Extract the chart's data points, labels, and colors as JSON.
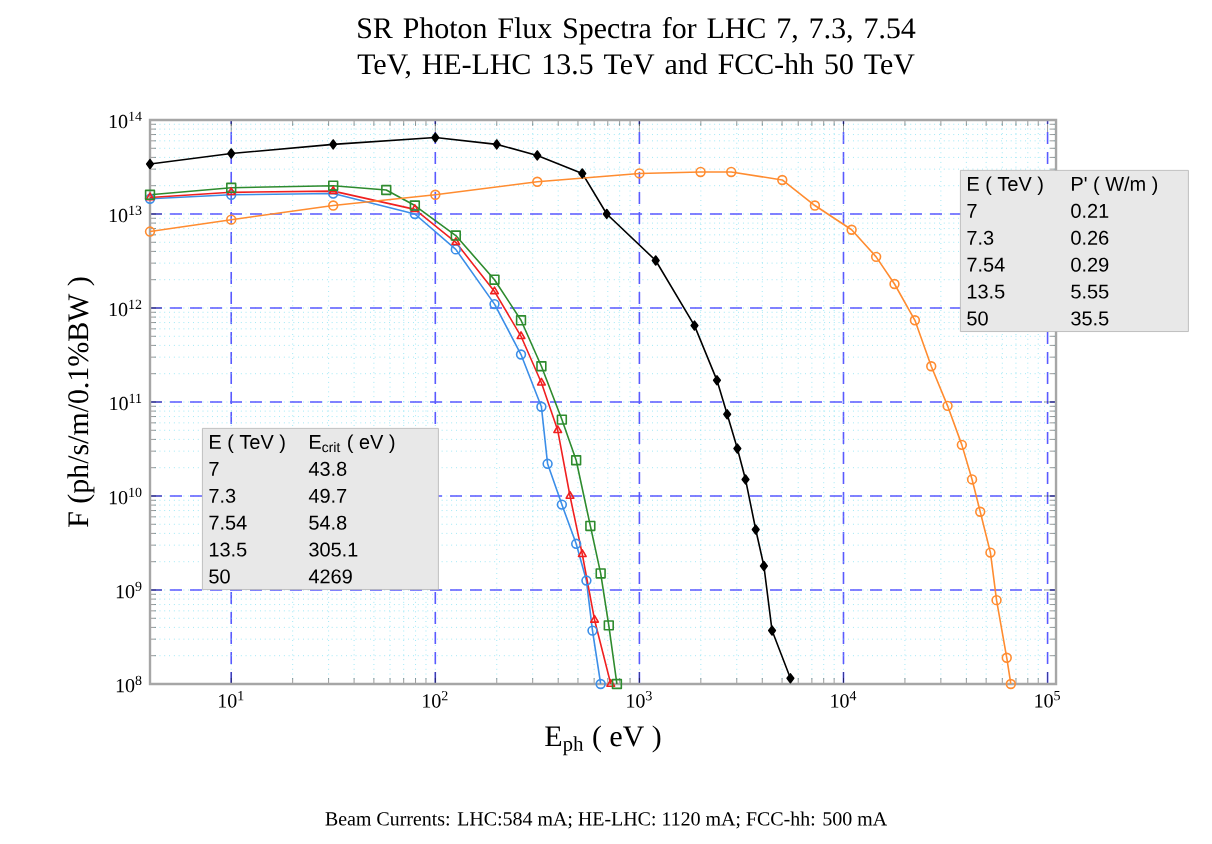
{
  "chart_data": {
    "type": "line",
    "title": "SR Photon Flux Spectra for LHC 7, 7.3, 7.54 TeV, HE-LHC 13.5 TeV and FCC-hh 50 TeV",
    "xlabel": "E$_{ph}$ ( eV )",
    "ylabel": "F (ph/s/m/0.1%BW )",
    "log": "xy",
    "grid": true,
    "line_style": "solid",
    "xlim": [
      4,
      110000
    ],
    "ylim": [
      100000000.0,
      100000000000000.0
    ],
    "xticks": [
      {
        "value": 10,
        "label": "10$^{1}$"
      },
      {
        "value": 100,
        "label": "10$^{2}$"
      },
      {
        "value": 1000,
        "label": "10$^{3}$"
      },
      {
        "value": 10000,
        "label": "10$^{4}$"
      },
      {
        "value": 100000,
        "label": "10$^{5}$"
      }
    ],
    "yticks": [
      {
        "value": 100000000.0,
        "label": "10$^{8}$"
      },
      {
        "value": 1000000000.0,
        "label": "10$^{9}$"
      },
      {
        "value": 10000000000.0,
        "label": "10$^{10}$"
      },
      {
        "value": 100000000000.0,
        "label": "10$^{11}$"
      },
      {
        "value": 1000000000000.0,
        "label": "10$^{12}$"
      },
      {
        "value": 10000000000000.0,
        "label": "10$^{13}$"
      },
      {
        "value": 100000000000000.0,
        "label": "10$^{14}$"
      }
    ],
    "series": [
      {
        "color": "#3b8ee8",
        "marker": "circle",
        "x": [
          4,
          10,
          31.6,
          79.4,
          126,
          195,
          263,
          331,
          355,
          417,
          490,
          550,
          589,
          646
        ],
        "values": [
          14500000000000.0,
          16000000000000.0,
          16500000000000.0,
          10000000000000.0,
          4200000000000.0,
          1100000000000.0,
          320000000000.0,
          89000000000.0,
          22000000000.0,
          8100000000.0,
          3100000000.0,
          1260000000.0,
          370000000.0,
          100000000.0
        ]
      },
      {
        "color": "#f02020",
        "marker": "triangle",
        "x": [
          4,
          10,
          31.6,
          79.4,
          126,
          195,
          263,
          331,
          398,
          457,
          525,
          603,
          724
        ],
        "values": [
          15000000000000.0,
          17000000000000.0,
          17500000000000.0,
          11200000000000.0,
          5000000000000.0,
          1500000000000.0,
          500000000000.0,
          160000000000.0,
          50000000000.0,
          10000000000.0,
          2400000000.0,
          480000000.0,
          100000000.0
        ]
      },
      {
        "color": "#2e8b2e",
        "marker": "square",
        "x": [
          4,
          10,
          31.6,
          57.5,
          79.4,
          126,
          195,
          263,
          331,
          417,
          490,
          575,
          646,
          708,
          776
        ],
        "values": [
          16000000000000.0,
          19000000000000.0,
          20000000000000.0,
          18000000000000.0,
          12300000000000.0,
          5900000000000.0,
          2000000000000.0,
          740000000000.0,
          240000000000.0,
          65000000000.0,
          24000000000.0,
          4800000000.0,
          1500000000.0,
          420000000.0,
          100000000.0
        ]
      },
      {
        "color": "#000000",
        "marker": "diamond",
        "x": [
          4,
          10,
          31.6,
          100,
          200,
          316,
          525,
          692,
          1202,
          1862,
          2399,
          2692,
          3020,
          3311,
          3715,
          4074,
          4467,
          5495
        ],
        "values": [
          34000000000000.0,
          44000000000000.0,
          55000000000000.0,
          65000000000000.0,
          55000000000000.0,
          42000000000000.0,
          27000000000000.0,
          10000000000000.0,
          3200000000000.0,
          650000000000.0,
          170000000000.0,
          74000000000.0,
          32000000000.0,
          15000000000.0,
          4400000000.0,
          1800000000.0,
          370000000.0,
          115000000.0
        ]
      },
      {
        "color": "#ff8c30",
        "marker": "circle",
        "x": [
          4,
          10,
          31.6,
          100,
          316,
          1000,
          1995,
          2818,
          5012,
          7244,
          10965,
          14454,
          17783,
          22387,
          26915,
          32359,
          38019,
          42658,
          46774,
          52481,
          56234,
          63096,
          66069
        ],
        "values": [
          6500000000000.0,
          8700000000000.0,
          12300000000000.0,
          16000000000000.0,
          22000000000000.0,
          27000000000000.0,
          28000000000000.0,
          28000000000000.0,
          23000000000000.0,
          12300000000000.0,
          6800000000000.0,
          3500000000000.0,
          1800000000000.0,
          740000000000.0,
          240000000000.0,
          91000000000.0,
          35000000000.0,
          15000000000.0,
          6800000000.0,
          2500000000.0,
          780000000.0,
          190000000.0,
          100000000.0
        ]
      }
    ],
    "annotations": [
      "E ( TeV )",
      "P' ( W/m )",
      "7",
      "0.21",
      "7.3",
      "0.26",
      "7.54",
      "0.29",
      "13.5",
      "5.55",
      "50",
      "35.5",
      "E ( TeV )",
      "E$_{crit}$ ( eV )",
      "7",
      "43.8",
      "7.3",
      "49.7",
      "7.54",
      "54.8",
      "13.5",
      "305.1",
      "50",
      "4269",
      "Beam Currents: LHC:584 mA; HE-LHC: 1120 mA; FCC-hh: 500 mA"
    ]
  }
}
